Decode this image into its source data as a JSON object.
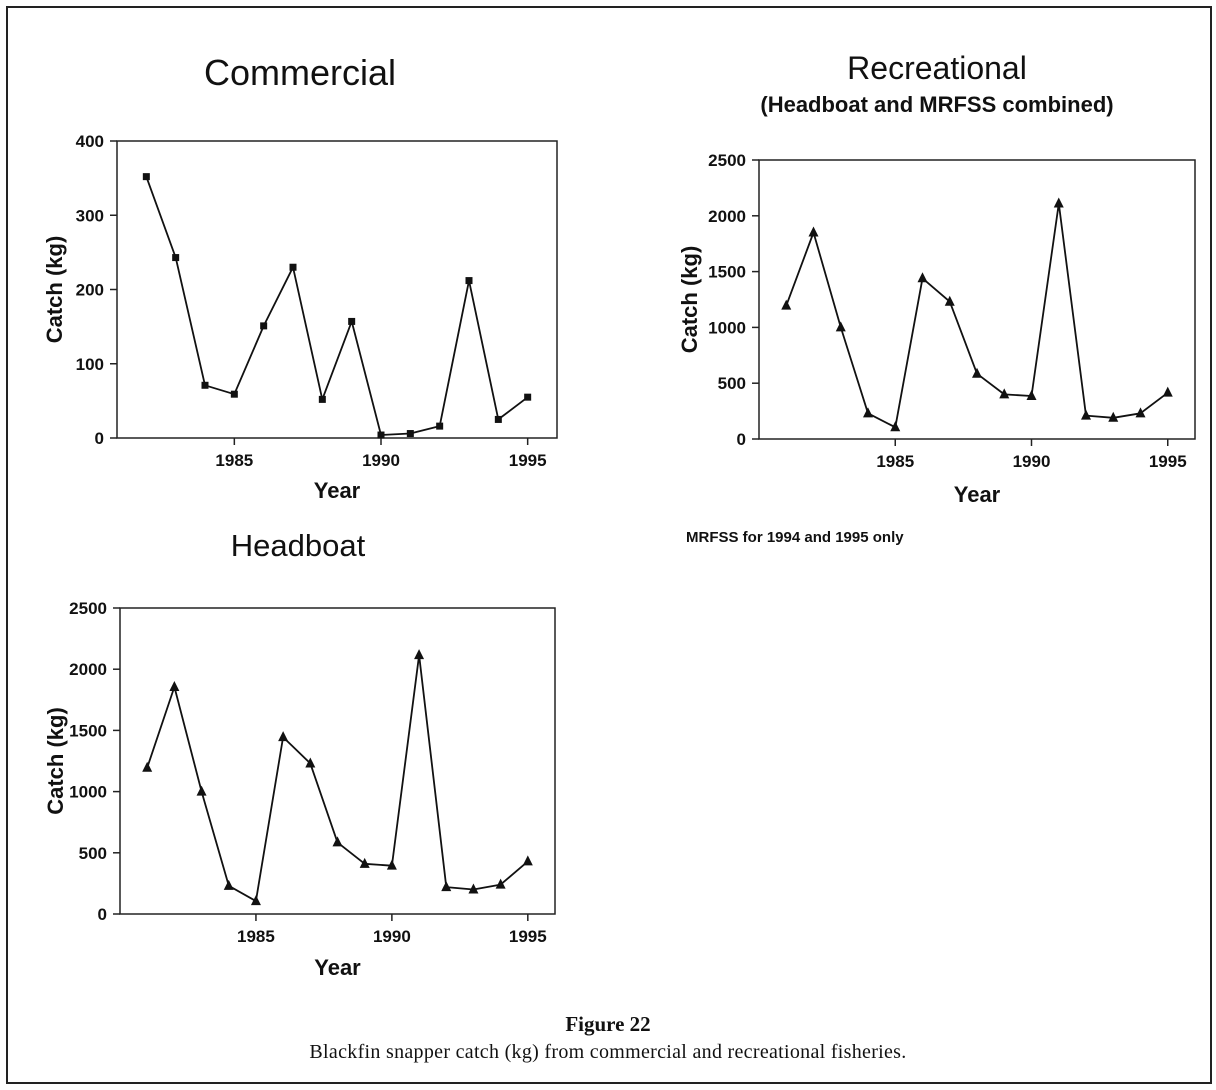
{
  "figure": {
    "label": "Figure 22",
    "caption": "Blackfin snapper catch (kg) from commercial and recreational fisheries."
  },
  "chart_data": [
    {
      "id": "commercial",
      "type": "line",
      "title": "Commercial",
      "subtitle": "",
      "xlabel": "Year",
      "ylabel": "Catch (kg)",
      "marker": "square",
      "xlim": [
        1981,
        1996
      ],
      "ylim": [
        0,
        400
      ],
      "yticks": [
        0,
        100,
        200,
        300,
        400
      ],
      "xticks": [
        1985,
        1990,
        1995
      ],
      "grid": false,
      "x": [
        1982,
        1983,
        1984,
        1985,
        1986,
        1987,
        1988,
        1989,
        1990,
        1991,
        1992,
        1993,
        1994,
        1995
      ],
      "values": [
        352,
        243,
        71,
        59,
        151,
        230,
        52,
        157,
        4,
        6,
        16,
        212,
        25,
        55
      ]
    },
    {
      "id": "recreational",
      "type": "line",
      "title": "Recreational",
      "subtitle": "(Headboat and MRFSS combined)",
      "note": "MRFSS for 1994 and 1995 only",
      "xlabel": "Year",
      "ylabel": "Catch (kg)",
      "marker": "triangle",
      "xlim": [
        1980,
        1996
      ],
      "ylim": [
        0,
        2500
      ],
      "yticks": [
        0,
        500,
        1000,
        1500,
        2000,
        2500
      ],
      "xticks": [
        1985,
        1990,
        1995
      ],
      "grid": false,
      "x": [
        1981,
        1982,
        1983,
        1984,
        1985,
        1986,
        1987,
        1988,
        1989,
        1990,
        1991,
        1992,
        1993,
        1994,
        1995
      ],
      "values": [
        1195,
        1850,
        1000,
        230,
        105,
        1440,
        1230,
        585,
        400,
        385,
        2110,
        210,
        190,
        230,
        415
      ]
    },
    {
      "id": "headboat",
      "type": "line",
      "title": "Headboat",
      "subtitle": "",
      "xlabel": "Year",
      "ylabel": "Catch (kg)",
      "marker": "triangle",
      "xlim": [
        1980,
        1996
      ],
      "ylim": [
        0,
        2500
      ],
      "yticks": [
        0,
        500,
        1000,
        1500,
        2000,
        2500
      ],
      "xticks": [
        1985,
        1990,
        1995
      ],
      "grid": false,
      "x": [
        1981,
        1982,
        1983,
        1984,
        1985,
        1986,
        1987,
        1988,
        1989,
        1990,
        1991,
        1992,
        1993,
        1994,
        1995
      ],
      "values": [
        1195,
        1855,
        1000,
        230,
        105,
        1445,
        1230,
        585,
        410,
        395,
        2115,
        220,
        200,
        240,
        430
      ]
    }
  ]
}
